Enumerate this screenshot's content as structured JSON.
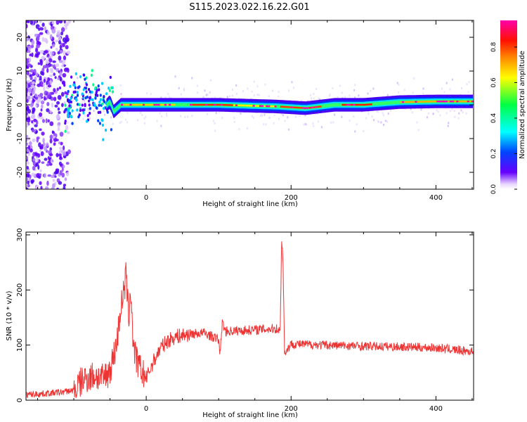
{
  "title": "S115.2023.022.16.22.G01",
  "chart_data": [
    {
      "type": "heatmap",
      "xlabel": "Height of straight line (km)",
      "ylabel": "Frequency (Hz)",
      "xlim": [
        -166,
        452
      ],
      "ylim": [
        -25,
        25
      ],
      "xticks": [
        0,
        200,
        400
      ],
      "yticks": [
        -20,
        -10,
        0,
        10,
        20
      ],
      "colorbar": {
        "label": "Normalized spectral amplitude",
        "range": [
          0,
          0.95
        ],
        "ticks": [
          0.0,
          0.2,
          0.4,
          0.6,
          0.8
        ],
        "colormap": "rainbow (purple → blue → cyan → green → yellow → orange → red → magenta)"
      },
      "ridge": [
        {
          "x": -110,
          "y": -2.5
        },
        {
          "x": -100,
          "y": 1
        },
        {
          "x": -90,
          "y": 2
        },
        {
          "x": -80,
          "y": 2.5
        },
        {
          "x": -70,
          "y": 1.5
        },
        {
          "x": -60,
          "y": -1.5
        },
        {
          "x": -50,
          "y": 1
        },
        {
          "x": -45,
          "y": -2
        },
        {
          "x": -35,
          "y": 0
        },
        {
          "x": 0,
          "y": 0
        },
        {
          "x": 100,
          "y": 0
        },
        {
          "x": 180,
          "y": -0.5
        },
        {
          "x": 220,
          "y": -1
        },
        {
          "x": 260,
          "y": 0
        },
        {
          "x": 300,
          "y": 0
        },
        {
          "x": 350,
          "y": 0.8
        },
        {
          "x": 400,
          "y": 1
        },
        {
          "x": 452,
          "y": 1
        }
      ]
    },
    {
      "type": "line",
      "xlabel": "Height of straight line (km)",
      "ylabel": "SNR (10 * v/v)",
      "xlim": [
        -166,
        452
      ],
      "ylim": [
        0,
        305
      ],
      "xticks": [
        0,
        200,
        400
      ],
      "yticks": [
        0,
        100,
        200,
        300
      ],
      "color": "#ee3333",
      "x": [
        -166,
        -140,
        -120,
        -100,
        -85,
        -70,
        -60,
        -50,
        -45,
        -40,
        -35,
        -30,
        -28,
        -26,
        -24,
        -22,
        -20,
        -18,
        -15,
        -10,
        -5,
        0,
        10,
        20,
        30,
        40,
        60,
        80,
        100,
        102,
        105,
        110,
        140,
        180,
        185,
        187,
        189,
        191,
        200,
        250,
        300,
        350,
        400,
        452
      ],
      "y": [
        10,
        12,
        14,
        18,
        40,
        45,
        38,
        55,
        80,
        110,
        170,
        200,
        230,
        185,
        150,
        200,
        170,
        100,
        80,
        60,
        50,
        40,
        70,
        95,
        108,
        115,
        120,
        122,
        110,
        85,
        140,
        125,
        127,
        130,
        125,
        295,
        250,
        85,
        102,
        100,
        98,
        97,
        95,
        88
      ]
    }
  ]
}
